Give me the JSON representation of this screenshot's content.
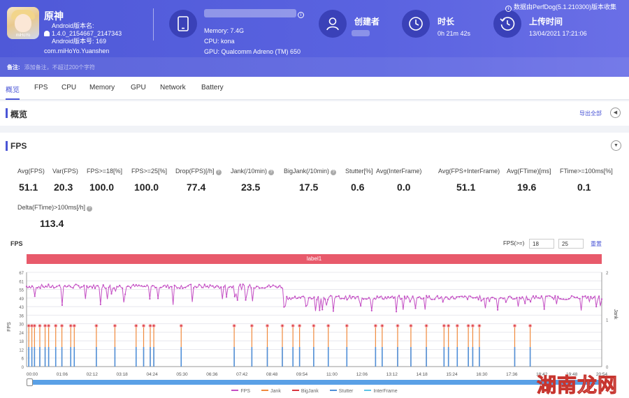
{
  "app": {
    "name": "原神",
    "icon_brand": "miHoYo",
    "version_label": "Android版本名:",
    "version_name": "1.4.0_2154667_2147343",
    "version_code_label": "Android版本号: 169",
    "package": "com.miHoYo.Yuanshen"
  },
  "device": {
    "memory": "Memory: 7.4G",
    "cpu": "CPU: kona",
    "gpu": "GPU: Qualcomm Adreno (TM) 650"
  },
  "creator": {
    "label": "创建者"
  },
  "duration": {
    "label": "时长",
    "value": "0h 21m 42s"
  },
  "upload": {
    "label": "上传时间",
    "value": "13/04/2021 17:21:06"
  },
  "collector_text": "数据由PerfDog(5.1.210300)版本收集",
  "note": {
    "label": "备注:",
    "placeholder": "添加备注，不超过200个字符"
  },
  "tabs": [
    "概览",
    "FPS",
    "CPU",
    "Memory",
    "GPU",
    "Network",
    "Battery"
  ],
  "overview": {
    "title": "概览",
    "export_label": "导出全部"
  },
  "fps_section": {
    "title": "FPS"
  },
  "metrics": [
    {
      "label": "Avg(FPS)",
      "value": "51.1"
    },
    {
      "label": "Var(FPS)",
      "value": "20.3"
    },
    {
      "label": "FPS>=18[%]",
      "value": "100.0"
    },
    {
      "label": "FPS>=25[%]",
      "value": "100.0"
    },
    {
      "label": "Drop(FPS)[/h]",
      "value": "77.4"
    },
    {
      "label": "Jank(/10min)",
      "value": "23.5"
    },
    {
      "label": "BigJank(/10min)",
      "value": "17.5"
    },
    {
      "label": "Stutter[%]",
      "value": "0.6"
    },
    {
      "label": "Avg(InterFrame)",
      "value": "0.0"
    },
    {
      "label": "Avg(FPS+InterFrame)",
      "value": "51.1"
    },
    {
      "label": "Avg(FTime)[ms]",
      "value": "19.6"
    },
    {
      "label": "FTime>=100ms[%]",
      "value": "0.1"
    },
    {
      "label": "Delta(FTime)>100ms[/h]",
      "value": "113.4"
    }
  ],
  "chart_controls": {
    "title": "FPS",
    "threshold_label": "FPS(>=)",
    "threshold_1": "18",
    "threshold_2": "25",
    "reset_label": "重置",
    "label_bar": "label1"
  },
  "chart_data": {
    "type": "line",
    "ylabel_left": "FPS",
    "ylabel_right": "Jank",
    "y_ticks": [
      "0",
      "6",
      "12",
      "18",
      "24",
      "30",
      "36",
      "43",
      "49",
      "55",
      "61",
      "67"
    ],
    "ylim": [
      0,
      67
    ],
    "y2_ticks": [
      "0",
      "1",
      "2"
    ],
    "y2lim": [
      0,
      2
    ],
    "x_ticks": [
      "00:00",
      "01:06",
      "02:12",
      "03:18",
      "04:24",
      "05:30",
      "06:36",
      "07:42",
      "08:48",
      "09:54",
      "11:00",
      "12:06",
      "13:12",
      "14:18",
      "15:24",
      "16:30",
      "17:36",
      "18:42",
      "19:48",
      "20:54"
    ],
    "xlim_seconds": [
      0,
      1302
    ],
    "fps_segments": [
      {
        "from_s": 0,
        "to_s": 580,
        "level": 57,
        "min_level": 43
      },
      {
        "from_s": 580,
        "to_s": 1302,
        "level": 49,
        "min_level": 38
      }
    ],
    "jank_times_s": [
      5,
      12,
      18,
      30,
      42,
      50,
      66,
      80,
      100,
      108,
      158,
      200,
      248,
      265,
      280,
      288,
      350,
      470,
      510,
      545,
      579,
      603,
      618,
      650,
      683,
      725,
      790,
      805,
      840,
      870,
      905,
      945,
      955,
      975,
      1000,
      1010,
      1025,
      1105,
      1140
    ],
    "series": [
      {
        "name": "FPS",
        "color": "#c44fc4"
      },
      {
        "name": "Jank",
        "color": "#f08a3c"
      },
      {
        "name": "BigJank",
        "color": "#d9363e"
      },
      {
        "name": "Stutter",
        "color": "#4f8fd8"
      },
      {
        "name": "InterFrame",
        "color": "#5fc4e6"
      }
    ],
    "grid": true,
    "legend": "bottom"
  },
  "watermark": {
    "text_a": "湖南",
    "text_b": "龙网"
  }
}
